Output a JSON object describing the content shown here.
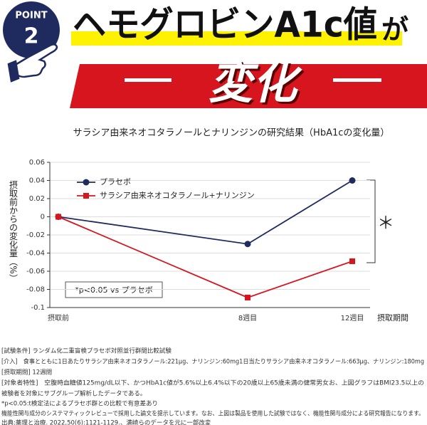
{
  "header": {
    "badge_label": "POINT",
    "badge_number": "2",
    "title": "ヘモグロビンA1c値",
    "title_suffix": "が",
    "banner": "変化"
  },
  "chart_data": {
    "type": "line",
    "title": "サラシア由来ネオコタラノールとナリンジンの研究結果（HbA1cの変化量）",
    "y_label": "摂取前からの変化量（%）",
    "x_label": "摂取期間",
    "categories": [
      "摂取前",
      "8週目",
      "12週目"
    ],
    "series": [
      {
        "name": "プラセボ",
        "color": "#1f2b5e",
        "marker": "circle",
        "values": [
          0,
          -0.03,
          0.04
        ]
      },
      {
        "name": "サラシア由来ネオコタラノール+ナリンジン",
        "color": "#d7151f",
        "marker": "square",
        "values": [
          0,
          -0.089,
          -0.049
        ]
      }
    ],
    "ylim": [
      -0.1,
      0.06
    ],
    "yticks": [
      0.06,
      0.04,
      0.02,
      0,
      -0.02,
      -0.04,
      -0.06,
      -0.08,
      -0.1
    ],
    "grid": true,
    "annotation": "*p<0.05 vs プラセボ",
    "significance": "＊"
  },
  "footnotes": [
    "[試験条件] ランダム化二重盲検プラセボ対照並行群間比較試験",
    "[介入]　食事とともに1日あたりサラシア由来ネオコタラノール:221μg、ナリンジン:60mg1日当たりサラシア由来ネオコタラノール:663μg、ナリンジン:180mg",
    "[摂取期間] 12週間",
    "[対象者特性]　空腹時血糖値125mg/dL以下、かつHbA1c値が5.6%以上6.4%以下の20歳以上65歳未満の健常男女お、上図グラフはBMI23.5以上の",
    "被験者を対象にサブグループ解析したデータである。",
    "*p<0.05:t検定法によるプラセボ群との比較で有意差あり",
    "機能性関与成分のシステマティックレビューで採用した論文を提示しています。なお、上図は製品を使用した試験ではなく、機能性関与成分による研究報告になります。",
    "出典:薬理と治療. 2022,50(6):1121-1129.、満崎らのデータを元に一部改変"
  ]
}
